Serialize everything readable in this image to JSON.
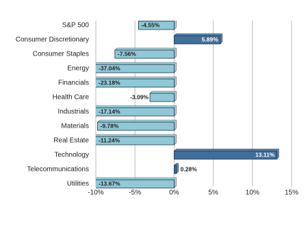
{
  "chart_data": {
    "type": "bar",
    "orientation": "horizontal",
    "categories": [
      "S&P 500",
      "Consumer Discretionary",
      "Consumer Staples",
      "Energy",
      "Financials",
      "Health Care",
      "Industrials",
      "Materials",
      "Real Estate",
      "Technology",
      "Telecommunications",
      "Utilities"
    ],
    "values": [
      -4.55,
      5.89,
      -7.56,
      -37.04,
      -23.18,
      -3.09,
      -17.14,
      -9.78,
      -11.24,
      13.11,
      0.28,
      -13.67
    ],
    "value_labels": [
      "-4.55%",
      "5.89%",
      "-7.56%",
      "-37.04%",
      "-23.18%",
      "-3.09%",
      "-17.14%",
      "-9.78%",
      "-11.24%",
      "13.11%",
      "0.28%",
      "-13.67%"
    ],
    "color_negative": "#8fc9d8",
    "color_positive": "#3f6f9c",
    "xlim": [
      -10,
      15
    ],
    "xticks": [
      {
        "value": -10,
        "label": "-10%"
      },
      {
        "value": -5,
        "label": "-5%"
      },
      {
        "value": 0,
        "label": "0%"
      },
      {
        "value": 5,
        "label": "5%"
      },
      {
        "value": 10,
        "label": "10%"
      },
      {
        "value": 15,
        "label": "15%"
      }
    ],
    "grid": true
  }
}
